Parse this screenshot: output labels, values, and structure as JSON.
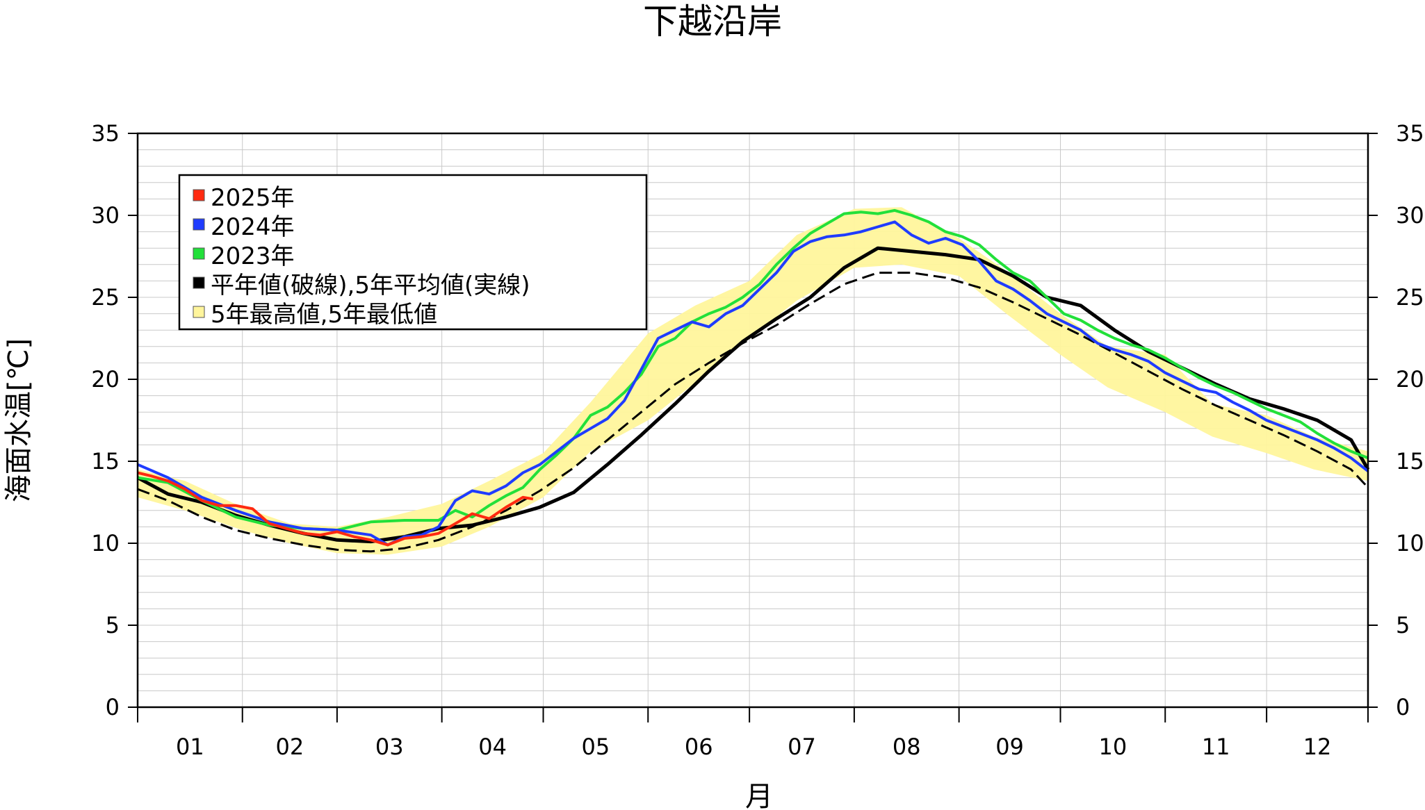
{
  "chart_data": {
    "type": "line",
    "title": "下越沿岸",
    "xlabel": "月",
    "ylabel": "海面水温[℃]",
    "ylim": [
      0,
      35
    ],
    "y_ticks": [
      "0",
      "5",
      "10",
      "15",
      "20",
      "25",
      "30",
      "35"
    ],
    "y_ticks_right": [
      "0",
      "5",
      "10",
      "15",
      "20",
      "25",
      "30",
      "35"
    ],
    "months": [
      "01",
      "02",
      "03",
      "04",
      "05",
      "06",
      "07",
      "08",
      "09",
      "10",
      "11",
      "12"
    ],
    "grid": true,
    "legend_position": "top-left",
    "legend": [
      {
        "label": "2025年",
        "color": "#ff2a10"
      },
      {
        "label": "2024年",
        "color": "#1f3cff"
      },
      {
        "label": "2023年",
        "color": "#22e03a"
      },
      {
        "label": "平年値(破線),5年平均値(実線)",
        "color": "#000000"
      },
      {
        "label": "5年最高値,5年最低値",
        "color": "#fff59c"
      }
    ],
    "x_day_ticks": [
      1,
      32,
      60,
      91,
      121,
      152,
      182,
      213,
      244,
      274,
      305,
      335,
      365
    ],
    "band": {
      "x": [
        1,
        15,
        32,
        46,
        60,
        75,
        91,
        105,
        121,
        135,
        152,
        166,
        182,
        196,
        213,
        227,
        244,
        258,
        274,
        288,
        305,
        319,
        335,
        349,
        365
      ],
      "low": [
        12.8,
        12.0,
        10.8,
        10.0,
        9.4,
        9.3,
        9.8,
        11.0,
        12.8,
        15.6,
        17.5,
        19.8,
        22.5,
        24.8,
        26.8,
        27.0,
        26.3,
        24.0,
        21.5,
        19.5,
        18.0,
        16.5,
        15.5,
        14.5,
        13.8
      ],
      "high": [
        14.5,
        13.8,
        12.2,
        11.2,
        11.0,
        11.6,
        12.4,
        13.8,
        15.5,
        18.6,
        22.8,
        24.5,
        26.0,
        28.8,
        30.4,
        30.5,
        28.6,
        26.6,
        24.0,
        22.0,
        21.5,
        18.5,
        17.8,
        16.5,
        15.6
      ]
    },
    "series": [
      {
        "name": "2025年",
        "color": "#ff2a10",
        "x": [
          1,
          5,
          10,
          15,
          20,
          25,
          30,
          35,
          40,
          45,
          50,
          55,
          60,
          65,
          70,
          75,
          80,
          85,
          90,
          95,
          100,
          105,
          110,
          115,
          118
        ],
        "values": [
          14.3,
          14.1,
          13.8,
          13.3,
          12.6,
          12.3,
          12.3,
          12.1,
          11.2,
          10.9,
          10.6,
          10.5,
          10.7,
          10.4,
          10.2,
          9.9,
          10.3,
          10.4,
          10.6,
          11.2,
          11.8,
          11.5,
          12.2,
          12.8,
          12.7
        ]
      },
      {
        "name": "2024年",
        "color": "#1f3cff",
        "x": [
          1,
          10,
          20,
          30,
          40,
          50,
          60,
          70,
          75,
          80,
          85,
          90,
          95,
          100,
          105,
          110,
          115,
          120,
          125,
          130,
          135,
          140,
          145,
          150,
          155,
          160,
          165,
          170,
          175,
          180,
          185,
          190,
          195,
          200,
          205,
          210,
          215,
          220,
          225,
          230,
          235,
          240,
          245,
          250,
          255,
          260,
          265,
          270,
          275,
          280,
          285,
          290,
          295,
          300,
          305,
          310,
          315,
          320,
          325,
          330,
          335,
          340,
          345,
          350,
          355,
          360,
          365
        ],
        "values": [
          14.8,
          14.0,
          12.8,
          12.0,
          11.3,
          10.9,
          10.8,
          10.5,
          9.9,
          10.4,
          10.5,
          11.0,
          12.6,
          13.2,
          13.0,
          13.5,
          14.3,
          14.8,
          15.6,
          16.4,
          17.0,
          17.6,
          18.7,
          20.6,
          22.5,
          23.0,
          23.5,
          23.2,
          24.0,
          24.5,
          25.5,
          26.5,
          27.8,
          28.4,
          28.7,
          28.8,
          29.0,
          29.3,
          29.6,
          28.8,
          28.3,
          28.6,
          28.2,
          27.2,
          26.0,
          25.5,
          24.8,
          24.0,
          23.5,
          23.0,
          22.2,
          21.8,
          21.5,
          21.1,
          20.4,
          19.9,
          19.4,
          19.2,
          18.6,
          18.1,
          17.5,
          17.1,
          16.7,
          16.3,
          15.8,
          15.2,
          14.4
        ]
      },
      {
        "name": "2023年",
        "color": "#22e03a",
        "x": [
          1,
          10,
          20,
          30,
          40,
          50,
          60,
          70,
          80,
          90,
          95,
          100,
          105,
          110,
          115,
          120,
          125,
          130,
          135,
          140,
          145,
          150,
          155,
          160,
          165,
          170,
          175,
          180,
          185,
          190,
          195,
          200,
          205,
          210,
          215,
          220,
          225,
          230,
          235,
          240,
          245,
          250,
          255,
          260,
          265,
          270,
          275,
          280,
          285,
          290,
          295,
          300,
          305,
          310,
          315,
          320,
          325,
          330,
          335,
          340,
          345,
          350,
          355,
          360,
          365
        ],
        "values": [
          14.0,
          13.7,
          12.6,
          11.6,
          11.1,
          10.9,
          10.8,
          11.3,
          11.4,
          11.4,
          12.0,
          11.6,
          12.3,
          12.9,
          13.4,
          14.5,
          15.4,
          16.4,
          17.8,
          18.3,
          19.2,
          20.3,
          22.0,
          22.5,
          23.5,
          24.0,
          24.4,
          25.0,
          25.8,
          27.0,
          28.0,
          28.9,
          29.5,
          30.1,
          30.2,
          30.1,
          30.3,
          30.0,
          29.6,
          29.0,
          28.7,
          28.2,
          27.3,
          26.5,
          26.0,
          25.0,
          24.0,
          23.6,
          23.0,
          22.5,
          22.1,
          21.8,
          21.3,
          20.7,
          20.1,
          19.6,
          19.2,
          18.7,
          18.2,
          17.8,
          17.4,
          16.7,
          16.1,
          15.6,
          15.2
        ]
      },
      {
        "name": "5年平均値",
        "color": "#000000",
        "dash": false,
        "x": [
          1,
          10,
          20,
          30,
          40,
          50,
          60,
          70,
          80,
          90,
          100,
          110,
          120,
          130,
          140,
          150,
          160,
          170,
          180,
          190,
          200,
          210,
          220,
          230,
          240,
          250,
          260,
          270,
          280,
          290,
          300,
          310,
          320,
          330,
          340,
          350,
          360,
          365
        ],
        "values": [
          14.0,
          13.0,
          12.5,
          11.7,
          11.1,
          10.6,
          10.2,
          10.1,
          10.4,
          10.9,
          11.1,
          11.6,
          12.2,
          13.1,
          14.8,
          16.6,
          18.5,
          20.5,
          22.3,
          23.7,
          25.0,
          26.8,
          28.0,
          27.8,
          27.6,
          27.3,
          26.3,
          25.0,
          24.5,
          23.0,
          21.7,
          20.7,
          19.7,
          18.8,
          18.2,
          17.5,
          16.3,
          14.5
        ]
      },
      {
        "name": "平年値",
        "color": "#000000",
        "dash": true,
        "x": [
          1,
          10,
          20,
          30,
          40,
          50,
          60,
          70,
          80,
          90,
          100,
          110,
          120,
          130,
          140,
          150,
          160,
          170,
          180,
          190,
          200,
          210,
          220,
          230,
          240,
          250,
          260,
          270,
          280,
          290,
          300,
          310,
          320,
          330,
          340,
          350,
          360,
          365
        ],
        "values": [
          13.3,
          12.6,
          11.6,
          10.8,
          10.3,
          9.9,
          9.6,
          9.5,
          9.7,
          10.2,
          11.0,
          12.0,
          13.2,
          14.6,
          16.3,
          18.0,
          19.7,
          21.0,
          22.2,
          23.3,
          24.6,
          25.8,
          26.5,
          26.5,
          26.2,
          25.6,
          24.7,
          23.7,
          22.7,
          21.6,
          20.5,
          19.4,
          18.4,
          17.5,
          16.6,
          15.6,
          14.5,
          13.4
        ]
      }
    ]
  }
}
